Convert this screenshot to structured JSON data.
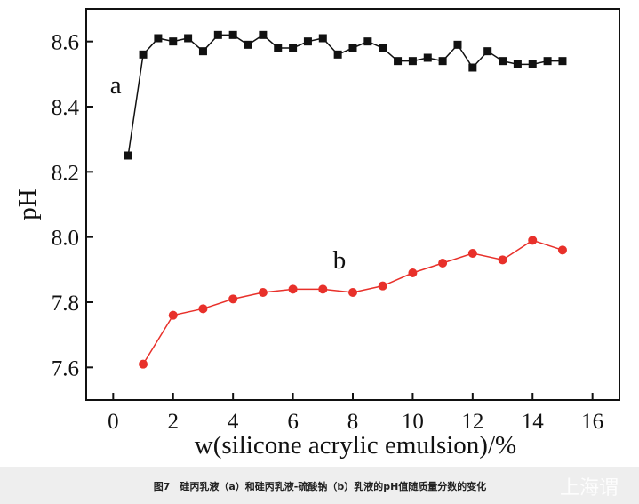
{
  "chart_data": {
    "type": "line",
    "x_label": "w(silicone acrylic emulsion)/%",
    "y_label": "pH",
    "xlim": [
      -0.9,
      16.9
    ],
    "xticks": [
      0,
      2,
      4,
      6,
      8,
      10,
      12,
      14,
      16
    ],
    "ylim": [
      7.5,
      8.7
    ],
    "yticks": [
      {
        "value": 7.6,
        "label": "7.6"
      },
      {
        "value": 7.8,
        "label": "7.8"
      },
      {
        "value": 8.0,
        "label": "8.0"
      },
      {
        "value": 8.2,
        "label": "8.2"
      },
      {
        "value": 8.4,
        "label": "8.4"
      },
      {
        "value": 8.6,
        "label": "8.6"
      }
    ],
    "series": [
      {
        "name": "a",
        "color": "#111111",
        "marker": "square",
        "x": [
          0.5,
          1,
          1.5,
          2,
          2.5,
          3,
          3.5,
          4,
          4.5,
          5,
          5.5,
          6,
          6.5,
          7,
          7.5,
          8,
          8.5,
          9,
          9.5,
          10,
          10.5,
          11,
          11.5,
          12,
          12.5,
          13,
          13.5,
          14,
          14.5,
          15
        ],
        "values": [
          8.25,
          8.56,
          8.61,
          8.6,
          8.61,
          8.57,
          8.62,
          8.62,
          8.59,
          8.62,
          8.58,
          8.58,
          8.6,
          8.61,
          8.56,
          8.58,
          8.6,
          8.58,
          8.54,
          8.54,
          8.55,
          8.54,
          8.59,
          8.52,
          8.57,
          8.54,
          8.53,
          8.53,
          8.54,
          8.54
        ]
      },
      {
        "name": "b",
        "color": "#e8302a",
        "marker": "circle",
        "x": [
          1,
          2,
          3,
          4,
          5,
          6,
          7,
          8,
          9,
          10,
          11,
          12,
          13,
          14,
          15
        ],
        "values": [
          7.61,
          7.76,
          7.78,
          7.81,
          7.83,
          7.84,
          7.84,
          7.83,
          7.85,
          7.89,
          7.92,
          7.95,
          7.93,
          7.99,
          7.96
        ]
      }
    ]
  },
  "caption": "图7　硅丙乳液（a）和硅丙乳液-硫酸钠（b）乳液的pH值随质量分数的变化",
  "watermark": "上海谓"
}
